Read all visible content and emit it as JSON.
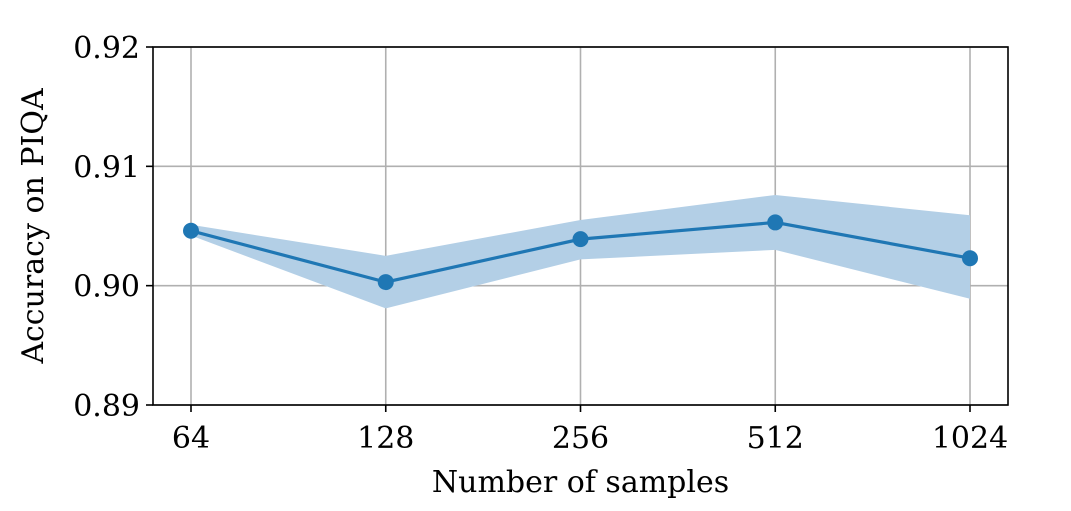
{
  "chart_data": {
    "type": "line",
    "title": "",
    "xlabel": "Number of samples",
    "ylabel": "Accuracy on PIQA",
    "categories": [
      "64",
      "128",
      "256",
      "512",
      "1024"
    ],
    "series": [
      {
        "values": [
          0.9046,
          0.9003,
          0.9039,
          0.9053,
          0.9023
        ],
        "band_lower": [
          0.9042,
          0.8981,
          0.9022,
          0.903,
          0.8989
        ],
        "band_upper": [
          0.9051,
          0.9025,
          0.9055,
          0.9076,
          0.9059
        ],
        "color": "#1f77b4",
        "band_color": "#b3cfe6"
      }
    ],
    "ylim": [
      0.89,
      0.92
    ],
    "yticks": [
      0.89,
      0.9,
      0.91,
      0.92
    ],
    "ytick_labels": [
      "0.89",
      "0.90",
      "0.91",
      "0.92"
    ],
    "grid": true,
    "legend": "none"
  }
}
